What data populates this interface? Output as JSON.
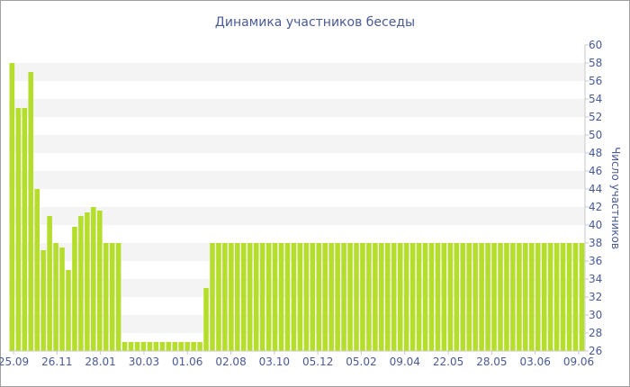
{
  "chart_data": {
    "type": "bar",
    "title": "Динамика участников беседы",
    "ylabel": "Число участников",
    "xlabel": "",
    "ylim": [
      26,
      60
    ],
    "yticks": [
      26,
      28,
      30,
      32,
      34,
      36,
      38,
      40,
      42,
      44,
      46,
      48,
      50,
      52,
      54,
      56,
      58,
      60
    ],
    "x_tick_labels": [
      "25.09",
      "26.11",
      "28.01",
      "30.03",
      "01.06",
      "02.08",
      "03.10",
      "05.12",
      "05.02",
      "09.04",
      "22.05",
      "28.05",
      "03.06",
      "09.06"
    ],
    "grid": "horizontal alternating bands",
    "y_axis_position": "right",
    "bar_color": "#b5dd2c",
    "values": [
      58,
      53,
      53,
      57,
      44,
      37.2,
      41,
      38,
      37.5,
      35,
      39.8,
      41,
      41.4,
      42,
      41.6,
      38,
      38,
      38,
      27,
      27,
      27,
      27,
      27,
      27,
      27,
      27,
      27,
      27,
      27,
      27,
      27,
      33,
      38,
      38,
      38,
      38,
      38,
      38,
      38,
      38,
      38,
      38,
      38,
      38,
      38,
      38,
      38,
      38,
      38,
      38,
      38,
      38,
      38,
      38,
      38,
      38,
      38,
      38,
      38,
      38,
      38,
      38,
      38,
      38,
      38,
      38,
      38,
      38,
      38,
      38,
      38,
      38,
      38,
      38,
      38,
      38,
      38,
      38,
      38,
      38,
      38,
      38,
      38,
      38,
      38,
      38,
      38,
      38,
      38,
      38,
      38,
      38
    ]
  }
}
